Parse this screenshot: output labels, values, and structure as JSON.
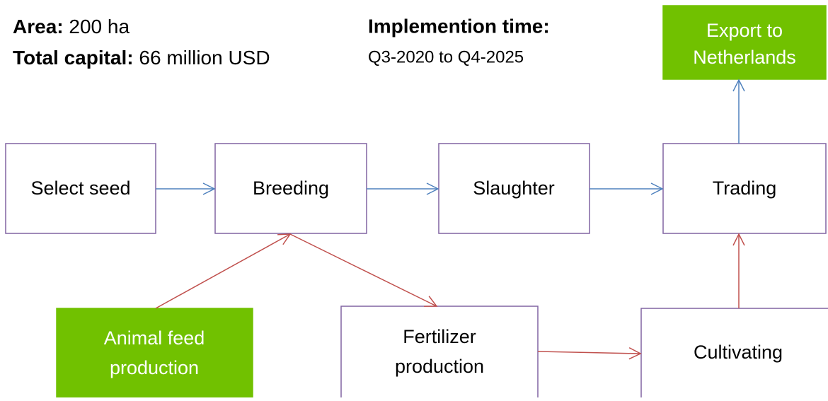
{
  "info": {
    "area_label": "Area:",
    "area_value": "200 ha",
    "capital_label": "Total capital:",
    "capital_value": "66 million USD",
    "time_label": "Implemention time:",
    "time_value": "Q3-2020 to Q4-2025"
  },
  "nodes": [
    {
      "lines": [
        "Export to",
        "Netherlands"
      ]
    },
    {
      "lines": [
        "Select seed"
      ]
    },
    {
      "lines": [
        "Breeding"
      ]
    },
    {
      "lines": [
        "Slaughter"
      ]
    },
    {
      "lines": [
        "Trading"
      ]
    },
    {
      "lines": [
        "Animal feed",
        "production"
      ]
    },
    {
      "lines": [
        "Fertilizer",
        "production"
      ]
    },
    {
      "lines": [
        "Cultivating"
      ]
    }
  ]
}
